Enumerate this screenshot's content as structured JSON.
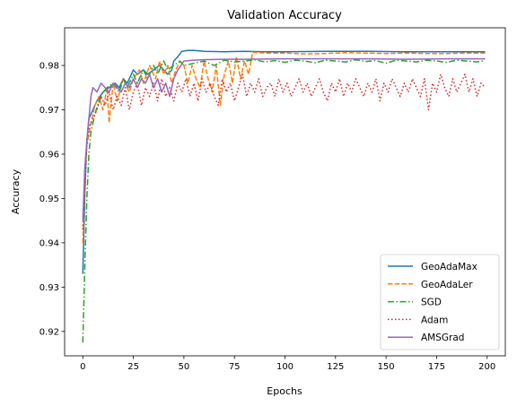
{
  "chart_data": {
    "type": "line",
    "title": "Validation Accuracy",
    "xlabel": "Epochs",
    "ylabel": "Accuracy",
    "xlim": [
      -9,
      209
    ],
    "ylim": [
      0.9145,
      0.9885
    ],
    "xticks": [
      0,
      25,
      50,
      75,
      100,
      125,
      150,
      175,
      200
    ],
    "yticks": [
      0.92,
      0.93,
      0.94,
      0.95,
      0.96,
      0.97,
      0.98
    ],
    "ytick_labels": [
      "0.92",
      "0.93",
      "0.94",
      "0.95",
      "0.96",
      "0.97",
      "0.98"
    ],
    "grid": false,
    "legend_position": "lower-right",
    "series": [
      {
        "name": "GeoAdaMax",
        "color": "#1f77b4",
        "dash": "solid",
        "points": [
          [
            0,
            0.933
          ],
          [
            1,
            0.951
          ],
          [
            2,
            0.963
          ],
          [
            3,
            0.968
          ],
          [
            5,
            0.97
          ],
          [
            7,
            0.972
          ],
          [
            10,
            0.974
          ],
          [
            13,
            0.975
          ],
          [
            16,
            0.976
          ],
          [
            18,
            0.975
          ],
          [
            20,
            0.977
          ],
          [
            22,
            0.976
          ],
          [
            25,
            0.979
          ],
          [
            27,
            0.978
          ],
          [
            30,
            0.979
          ],
          [
            32,
            0.978
          ],
          [
            35,
            0.979
          ],
          [
            38,
            0.98
          ],
          [
            40,
            0.979
          ],
          [
            42,
            0.978
          ],
          [
            44,
            0.979
          ],
          [
            45,
            0.981
          ],
          [
            47,
            0.982
          ],
          [
            49,
            0.9832
          ],
          [
            52,
            0.9834
          ],
          [
            55,
            0.9834
          ],
          [
            60,
            0.9832
          ],
          [
            70,
            0.9831
          ],
          [
            80,
            0.9832
          ],
          [
            90,
            0.9831
          ],
          [
            100,
            0.9831
          ],
          [
            120,
            0.9832
          ],
          [
            140,
            0.9832
          ],
          [
            160,
            0.9831
          ],
          [
            180,
            0.9831
          ],
          [
            199,
            0.9831
          ]
        ]
      },
      {
        "name": "GeoAdaLer",
        "color": "#ff7f0e",
        "dash": "dashed",
        "points": [
          [
            0,
            0.94
          ],
          [
            1,
            0.955
          ],
          [
            2,
            0.962
          ],
          [
            4,
            0.967
          ],
          [
            6,
            0.971
          ],
          [
            8,
            0.973
          ],
          [
            10,
            0.97
          ],
          [
            12,
            0.975
          ],
          [
            13,
            0.967
          ],
          [
            15,
            0.976
          ],
          [
            17,
            0.972
          ],
          [
            20,
            0.977
          ],
          [
            23,
            0.974
          ],
          [
            25,
            0.977
          ],
          [
            28,
            0.979
          ],
          [
            30,
            0.976
          ],
          [
            33,
            0.98
          ],
          [
            36,
            0.977
          ],
          [
            38,
            0.981
          ],
          [
            40,
            0.978
          ],
          [
            42,
            0.98
          ],
          [
            44,
            0.976
          ],
          [
            46,
            0.979
          ],
          [
            48,
            0.981
          ],
          [
            50,
            0.98
          ],
          [
            52,
            0.976
          ],
          [
            54,
            0.98
          ],
          [
            56,
            0.977
          ],
          [
            58,
            0.975
          ],
          [
            60,
            0.981
          ],
          [
            62,
            0.977
          ],
          [
            64,
            0.974
          ],
          [
            66,
            0.98
          ],
          [
            68,
            0.971
          ],
          [
            70,
            0.978
          ],
          [
            72,
            0.981
          ],
          [
            74,
            0.976
          ],
          [
            76,
            0.982
          ],
          [
            78,
            0.977
          ],
          [
            80,
            0.981
          ],
          [
            82,
            0.978
          ],
          [
            84,
            0.983
          ],
          [
            90,
            0.9828
          ],
          [
            100,
            0.9828
          ],
          [
            110,
            0.9826
          ],
          [
            120,
            0.9827
          ],
          [
            130,
            0.9829
          ],
          [
            140,
            0.9828
          ],
          [
            150,
            0.9827
          ],
          [
            160,
            0.9828
          ],
          [
            170,
            0.9827
          ],
          [
            180,
            0.9827
          ],
          [
            190,
            0.9828
          ],
          [
            199,
            0.9828
          ]
        ]
      },
      {
        "name": "SGD",
        "color": "#2ca02c",
        "dash": "dashdot",
        "points": [
          [
            0,
            0.9175
          ],
          [
            1,
            0.935
          ],
          [
            2,
            0.95
          ],
          [
            3,
            0.96
          ],
          [
            4,
            0.965
          ],
          [
            6,
            0.969
          ],
          [
            8,
            0.972
          ],
          [
            10,
            0.974
          ],
          [
            12,
            0.975
          ],
          [
            15,
            0.976
          ],
          [
            18,
            0.974
          ],
          [
            20,
            0.977
          ],
          [
            22,
            0.975
          ],
          [
            25,
            0.978
          ],
          [
            27,
            0.976
          ],
          [
            30,
            0.979
          ],
          [
            32,
            0.977
          ],
          [
            35,
            0.98
          ],
          [
            37,
            0.978
          ],
          [
            40,
            0.981
          ],
          [
            42,
            0.979
          ],
          [
            45,
            0.98
          ],
          [
            48,
            0.981
          ],
          [
            50,
            0.98
          ],
          [
            55,
            0.9805
          ],
          [
            60,
            0.981
          ],
          [
            65,
            0.98
          ],
          [
            70,
            0.9812
          ],
          [
            75,
            0.9808
          ],
          [
            80,
            0.981
          ],
          [
            85,
            0.9813
          ],
          [
            90,
            0.9808
          ],
          [
            95,
            0.9811
          ],
          [
            100,
            0.9807
          ],
          [
            105,
            0.9812
          ],
          [
            110,
            0.981
          ],
          [
            115,
            0.9806
          ],
          [
            120,
            0.9812
          ],
          [
            125,
            0.981
          ],
          [
            130,
            0.9808
          ],
          [
            135,
            0.9813
          ],
          [
            140,
            0.9809
          ],
          [
            145,
            0.9811
          ],
          [
            150,
            0.9805
          ],
          [
            155,
            0.9812
          ],
          [
            160,
            0.981
          ],
          [
            165,
            0.9808
          ],
          [
            170,
            0.9812
          ],
          [
            175,
            0.981
          ],
          [
            180,
            0.9807
          ],
          [
            185,
            0.9812
          ],
          [
            190,
            0.981
          ],
          [
            195,
            0.9808
          ],
          [
            199,
            0.9811
          ]
        ]
      },
      {
        "name": "Adam",
        "color": "#d62728",
        "dash": "dotted",
        "points": [
          [
            0,
            0.943
          ],
          [
            1,
            0.955
          ],
          [
            2,
            0.962
          ],
          [
            3,
            0.966
          ],
          [
            5,
            0.968
          ],
          [
            7,
            0.97
          ],
          [
            9,
            0.973
          ],
          [
            11,
            0.971
          ],
          [
            13,
            0.974
          ],
          [
            15,
            0.97
          ],
          [
            17,
            0.973
          ],
          [
            19,
            0.971
          ],
          [
            21,
            0.975
          ],
          [
            23,
            0.97
          ],
          [
            25,
            0.974
          ],
          [
            27,
            0.976
          ],
          [
            29,
            0.971
          ],
          [
            31,
            0.975
          ],
          [
            33,
            0.973
          ],
          [
            35,
            0.976
          ],
          [
            37,
            0.972
          ],
          [
            39,
            0.977
          ],
          [
            41,
            0.973
          ],
          [
            43,
            0.975
          ],
          [
            45,
            0.972
          ],
          [
            47,
            0.976
          ],
          [
            49,
            0.974
          ],
          [
            51,
            0.977
          ],
          [
            53,
            0.973
          ],
          [
            55,
            0.976
          ],
          [
            57,
            0.972
          ],
          [
            59,
            0.977
          ],
          [
            61,
            0.974
          ],
          [
            63,
            0.976
          ],
          [
            65,
            0.973
          ],
          [
            67,
            0.971
          ],
          [
            69,
            0.977
          ],
          [
            71,
            0.974
          ],
          [
            73,
            0.976
          ],
          [
            75,
            0.972
          ],
          [
            77,
            0.975
          ],
          [
            79,
            0.978
          ],
          [
            81,
            0.973
          ],
          [
            83,
            0.976
          ],
          [
            85,
            0.974
          ],
          [
            87,
            0.977
          ],
          [
            89,
            0.973
          ],
          [
            91,
            0.975
          ],
          [
            93,
            0.976
          ],
          [
            95,
            0.973
          ],
          [
            97,
            0.977
          ],
          [
            99,
            0.974
          ],
          [
            101,
            0.976
          ],
          [
            103,
            0.973
          ],
          [
            105,
            0.975
          ],
          [
            107,
            0.977
          ],
          [
            109,
            0.974
          ],
          [
            111,
            0.976
          ],
          [
            113,
            0.973
          ],
          [
            115,
            0.975
          ],
          [
            117,
            0.977
          ],
          [
            119,
            0.974
          ],
          [
            121,
            0.972
          ],
          [
            123,
            0.976
          ],
          [
            125,
            0.974
          ],
          [
            127,
            0.977
          ],
          [
            129,
            0.973
          ],
          [
            131,
            0.976
          ],
          [
            133,
            0.974
          ],
          [
            135,
            0.977
          ],
          [
            137,
            0.975
          ],
          [
            139,
            0.973
          ],
          [
            141,
            0.976
          ],
          [
            143,
            0.974
          ],
          [
            145,
            0.977
          ],
          [
            147,
            0.972
          ],
          [
            149,
            0.976
          ],
          [
            151,
            0.974
          ],
          [
            153,
            0.977
          ],
          [
            155,
            0.975
          ],
          [
            157,
            0.973
          ],
          [
            159,
            0.976
          ],
          [
            161,
            0.974
          ],
          [
            163,
            0.977
          ],
          [
            165,
            0.975
          ],
          [
            167,
            0.973
          ],
          [
            169,
            0.977
          ],
          [
            171,
            0.97
          ],
          [
            173,
            0.976
          ],
          [
            175,
            0.974
          ],
          [
            177,
            0.978
          ],
          [
            179,
            0.975
          ],
          [
            181,
            0.973
          ],
          [
            183,
            0.977
          ],
          [
            185,
            0.974
          ],
          [
            187,
            0.976
          ],
          [
            189,
            0.978
          ],
          [
            191,
            0.974
          ],
          [
            193,
            0.977
          ],
          [
            195,
            0.973
          ],
          [
            197,
            0.976
          ],
          [
            199,
            0.975
          ]
        ]
      },
      {
        "name": "AMSGrad",
        "color": "#9467bd",
        "dash": "solid",
        "points": [
          [
            0,
            0.945
          ],
          [
            1,
            0.957
          ],
          [
            2,
            0.963
          ],
          [
            3,
            0.968
          ],
          [
            4,
            0.973
          ],
          [
            5,
            0.975
          ],
          [
            7,
            0.974
          ],
          [
            9,
            0.976
          ],
          [
            11,
            0.975
          ],
          [
            13,
            0.974
          ],
          [
            15,
            0.976
          ],
          [
            17,
            0.975
          ],
          [
            19,
            0.974
          ],
          [
            21,
            0.976
          ],
          [
            23,
            0.975
          ],
          [
            25,
            0.977
          ],
          [
            27,
            0.975
          ],
          [
            29,
            0.977
          ],
          [
            31,
            0.976
          ],
          [
            33,
            0.978
          ],
          [
            35,
            0.975
          ],
          [
            37,
            0.977
          ],
          [
            39,
            0.974
          ],
          [
            41,
            0.976
          ],
          [
            43,
            0.973
          ],
          [
            45,
            0.977
          ],
          [
            47,
            0.979
          ],
          [
            50,
            0.981
          ],
          [
            55,
            0.9812
          ],
          [
            60,
            0.9813
          ],
          [
            70,
            0.9814
          ],
          [
            80,
            0.9814
          ],
          [
            100,
            0.9815
          ],
          [
            120,
            0.9815
          ],
          [
            140,
            0.9815
          ],
          [
            160,
            0.9814
          ],
          [
            180,
            0.9815
          ],
          [
            199,
            0.9815
          ]
        ]
      }
    ]
  }
}
